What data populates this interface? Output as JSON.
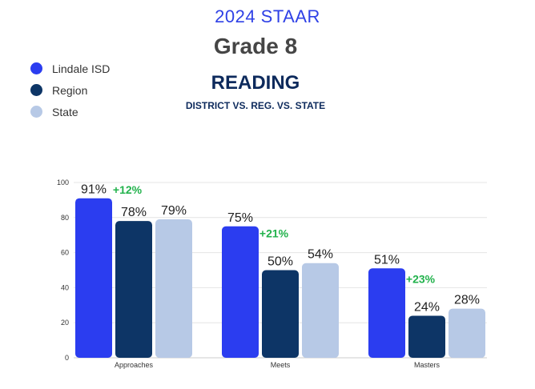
{
  "header": {
    "year": "2024 STAAR",
    "grade": "Grade 8",
    "subject": "READING",
    "subtitle": "DISTRICT VS. REG. VS. STATE"
  },
  "colors": {
    "district": "#2b3df0",
    "region": "#0d3566",
    "state": "#b7c9e6",
    "diff": "#22b24c"
  },
  "legend": [
    {
      "label": "Lindale ISD",
      "color": "#2b3df0"
    },
    {
      "label": "Region",
      "color": "#0d3566"
    },
    {
      "label": "State",
      "color": "#b7c9e6"
    }
  ],
  "chart_data": {
    "type": "bar",
    "categories": [
      "Approaches",
      "Meets",
      "Masters"
    ],
    "series": [
      {
        "name": "Lindale ISD",
        "values": [
          91,
          75,
          51
        ]
      },
      {
        "name": "Region",
        "values": [
          78,
          50,
          24
        ]
      },
      {
        "name": "State",
        "values": [
          79,
          54,
          28
        ]
      }
    ],
    "data_labels": [
      [
        "91%",
        "78%",
        "79%"
      ],
      [
        "75%",
        "50%",
        "54%"
      ],
      [
        "51%",
        "24%",
        "28%"
      ]
    ],
    "annotations": [
      "+12%",
      "+21%",
      "+23%"
    ],
    "ylim": [
      0,
      100
    ],
    "yticks": [
      0,
      20,
      40,
      60,
      80,
      100
    ],
    "grid": true,
    "legend_position": "top-left"
  }
}
